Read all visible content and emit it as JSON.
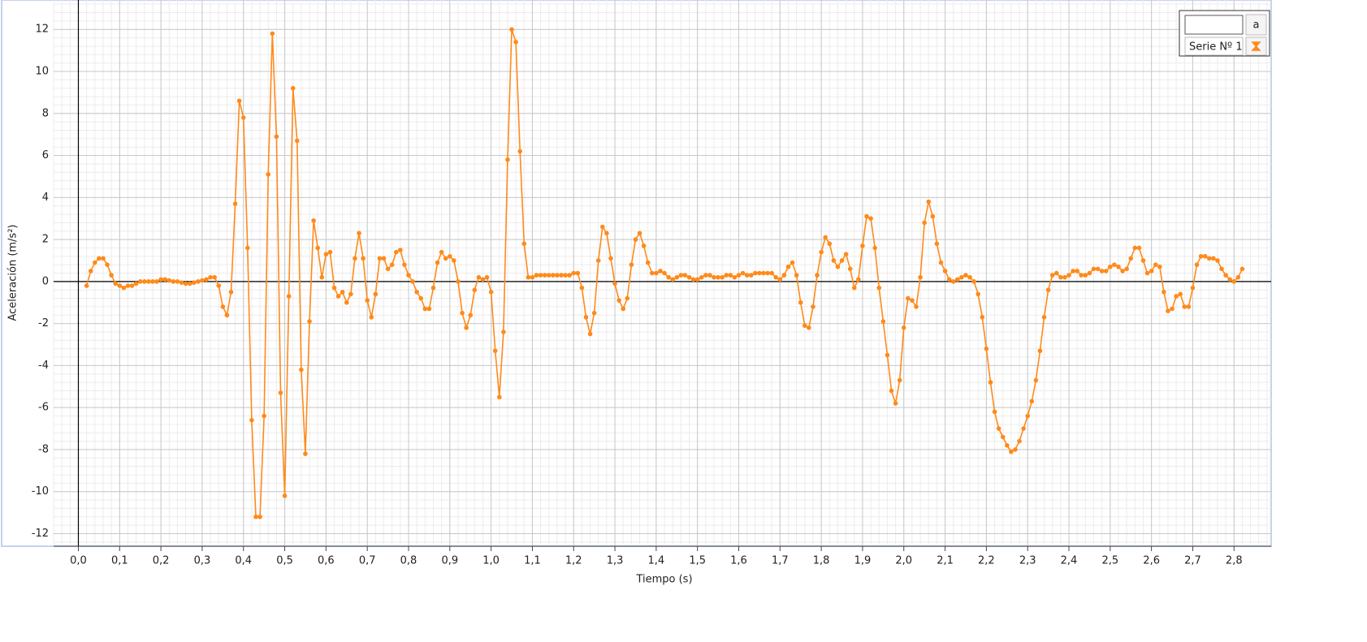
{
  "chart_data": {
    "type": "line",
    "x_label": "Tiempo (s)",
    "y_label": "Aceleración (m/s²)",
    "legend_button": "a",
    "x": [
      0.02,
      0.03,
      0.04,
      0.05,
      0.06,
      0.07,
      0.08,
      0.09,
      0.1,
      0.11,
      0.12,
      0.13,
      0.14,
      0.15,
      0.16,
      0.17,
      0.18,
      0.19,
      0.2,
      0.21,
      0.22,
      0.23,
      0.24,
      0.25,
      0.26,
      0.27,
      0.28,
      0.29,
      0.3,
      0.31,
      0.32,
      0.33,
      0.34,
      0.35,
      0.36,
      0.37,
      0.38,
      0.39,
      0.4,
      0.41,
      0.42,
      0.43,
      0.44,
      0.45,
      0.46,
      0.47,
      0.48,
      0.49,
      0.5,
      0.51,
      0.52,
      0.53,
      0.54,
      0.55,
      0.56,
      0.57,
      0.58,
      0.59,
      0.6,
      0.61,
      0.62,
      0.63,
      0.64,
      0.65,
      0.66,
      0.67,
      0.68,
      0.69,
      0.7,
      0.71,
      0.72,
      0.73,
      0.74,
      0.75,
      0.76,
      0.77,
      0.78,
      0.79,
      0.8,
      0.81,
      0.82,
      0.83,
      0.84,
      0.85,
      0.86,
      0.87,
      0.88,
      0.89,
      0.9,
      0.91,
      0.92,
      0.93,
      0.94,
      0.95,
      0.96,
      0.97,
      0.98,
      0.99,
      1.0,
      1.01,
      1.02,
      1.03,
      1.04,
      1.05,
      1.06,
      1.07,
      1.08,
      1.09,
      1.1,
      1.11,
      1.12,
      1.13,
      1.14,
      1.15,
      1.16,
      1.17,
      1.18,
      1.19,
      1.2,
      1.21,
      1.22,
      1.23,
      1.24,
      1.25,
      1.26,
      1.27,
      1.28,
      1.29,
      1.3,
      1.31,
      1.32,
      1.33,
      1.34,
      1.35,
      1.36,
      1.37,
      1.38,
      1.39,
      1.4,
      1.41,
      1.42,
      1.43,
      1.44,
      1.45,
      1.46,
      1.47,
      1.48,
      1.49,
      1.5,
      1.51,
      1.52,
      1.53,
      1.54,
      1.55,
      1.56,
      1.57,
      1.58,
      1.59,
      1.6,
      1.61,
      1.62,
      1.63,
      1.64,
      1.65,
      1.66,
      1.67,
      1.68,
      1.69,
      1.7,
      1.71,
      1.72,
      1.73,
      1.74,
      1.75,
      1.76,
      1.77,
      1.78,
      1.79,
      1.8,
      1.81,
      1.82,
      1.83,
      1.84,
      1.85,
      1.86,
      1.87,
      1.88,
      1.89,
      1.9,
      1.91,
      1.92,
      1.93,
      1.94,
      1.95,
      1.96,
      1.97,
      1.98,
      1.99,
      2.0,
      2.01,
      2.02,
      2.03,
      2.04,
      2.05,
      2.06,
      2.07,
      2.08,
      2.09,
      2.1,
      2.11,
      2.12,
      2.13,
      2.14,
      2.15,
      2.16,
      2.17,
      2.18,
      2.19,
      2.2,
      2.21,
      2.22,
      2.23,
      2.24,
      2.25,
      2.26,
      2.27,
      2.28,
      2.29,
      2.3,
      2.31,
      2.32,
      2.33,
      2.34,
      2.35,
      2.36,
      2.37,
      2.38,
      2.39,
      2.4,
      2.41,
      2.42,
      2.43,
      2.44,
      2.45,
      2.46,
      2.47,
      2.48,
      2.49,
      2.5,
      2.51,
      2.52,
      2.53,
      2.54,
      2.55,
      2.56,
      2.57,
      2.58,
      2.59,
      2.6,
      2.61,
      2.62,
      2.63,
      2.64,
      2.65,
      2.66,
      2.67,
      2.68,
      2.69,
      2.7,
      2.71,
      2.72,
      2.73,
      2.74,
      2.75,
      2.76,
      2.77,
      2.78,
      2.79,
      2.8,
      2.81,
      2.82
    ],
    "series": [
      {
        "name": "Serie Nº 1",
        "color": "#ff8a1a",
        "values": [
          -0.2,
          0.5,
          0.9,
          1.1,
          1.1,
          0.8,
          0.3,
          -0.1,
          -0.2,
          -0.3,
          -0.2,
          -0.2,
          -0.1,
          0,
          0,
          0,
          0,
          0,
          0.1,
          0.1,
          0.05,
          0,
          0,
          -0.05,
          -0.1,
          -0.1,
          -0.05,
          0,
          0.05,
          0.1,
          0.2,
          0.2,
          -0.2,
          -1.2,
          -1.6,
          -0.5,
          3.7,
          8.6,
          7.8,
          1.6,
          -6.6,
          -11.2,
          -11.2,
          -6.4,
          5.1,
          11.8,
          6.9,
          -5.3,
          -10.2,
          -0.7,
          9.2,
          6.7,
          -4.2,
          -8.2,
          -1.9,
          2.9,
          1.6,
          0.2,
          1.3,
          1.4,
          -0.3,
          -0.7,
          -0.5,
          -1,
          -0.6,
          1.1,
          2.3,
          1.1,
          -0.9,
          -1.7,
          -0.6,
          1.1,
          1.1,
          0.6,
          0.8,
          1.4,
          1.5,
          0.8,
          0.3,
          0,
          -0.5,
          -0.8,
          -1.3,
          -1.3,
          -0.3,
          0.9,
          1.4,
          1.1,
          1.2,
          1,
          0,
          -1.5,
          -2.2,
          -1.6,
          -0.4,
          0.2,
          0.1,
          0.2,
          -0.5,
          -3.3,
          -5.5,
          -2.4,
          5.8,
          12,
          11.4,
          6.2,
          1.8,
          0.2,
          0.2,
          0.3,
          0.3,
          0.3,
          0.3,
          0.3,
          0.3,
          0.3,
          0.3,
          0.3,
          0.4,
          0.4,
          -0.3,
          -1.7,
          -2.5,
          -1.5,
          1,
          2.6,
          2.3,
          1.1,
          -0.1,
          -0.9,
          -1.3,
          -0.8,
          0.8,
          2,
          2.3,
          1.7,
          0.9,
          0.4,
          0.4,
          0.5,
          0.4,
          0.2,
          0.1,
          0.2,
          0.3,
          0.3,
          0.2,
          0.1,
          0.1,
          0.2,
          0.3,
          0.3,
          0.2,
          0.2,
          0.2,
          0.3,
          0.3,
          0.2,
          0.3,
          0.4,
          0.3,
          0.3,
          0.4,
          0.4,
          0.4,
          0.4,
          0.4,
          0.2,
          0.1,
          0.3,
          0.7,
          0.9,
          0.3,
          -1,
          -2.1,
          -2.2,
          -1.2,
          0.3,
          1.4,
          2.1,
          1.8,
          1,
          0.7,
          1,
          1.3,
          0.6,
          -0.3,
          0.1,
          1.7,
          3.1,
          3,
          1.6,
          -0.3,
          -1.9,
          -3.5,
          -5.2,
          -5.8,
          -4.7,
          -2.2,
          -0.8,
          -0.9,
          -1.2,
          0.2,
          2.8,
          3.8,
          3.1,
          1.8,
          0.9,
          0.5,
          0.1,
          0,
          0.1,
          0.2,
          0.3,
          0.2,
          0,
          -0.6,
          -1.7,
          -3.2,
          -4.8,
          -6.2,
          -7,
          -7.4,
          -7.8,
          -8.1,
          -8,
          -7.6,
          -7,
          -6.4,
          -5.7,
          -4.7,
          -3.3,
          -1.7,
          -0.4,
          0.3,
          0.4,
          0.2,
          0.2,
          0.3,
          0.5,
          0.5,
          0.3,
          0.3,
          0.4,
          0.6,
          0.6,
          0.5,
          0.5,
          0.7,
          0.8,
          0.7,
          0.5,
          0.6,
          1.1,
          1.6,
          1.6,
          1,
          0.4,
          0.5,
          0.8,
          0.7,
          -0.5,
          -1.4,
          -1.3,
          -0.7,
          -0.6,
          -1.2,
          -1.2,
          -0.3,
          0.8,
          1.2,
          1.2,
          1.1,
          1.1,
          1,
          0.6,
          0.3,
          0.1,
          0,
          0.2,
          0.6
        ]
      }
    ],
    "xlim": [
      -0.06,
      2.89
    ],
    "ylim": [
      -12.6,
      13.4
    ],
    "xticks": [
      {
        "value": 0,
        "label": "0,0"
      },
      {
        "value": 0.1,
        "label": "0,1"
      },
      {
        "value": 0.2,
        "label": "0,2"
      },
      {
        "value": 0.3,
        "label": "0,3"
      },
      {
        "value": 0.4,
        "label": "0,4"
      },
      {
        "value": 0.5,
        "label": "0,5"
      },
      {
        "value": 0.6,
        "label": "0,6"
      },
      {
        "value": 0.7,
        "label": "0,7"
      },
      {
        "value": 0.8,
        "label": "0,8"
      },
      {
        "value": 0.9,
        "label": "0,9"
      },
      {
        "value": 1.0,
        "label": "1,0"
      },
      {
        "value": 1.1,
        "label": "1,1"
      },
      {
        "value": 1.2,
        "label": "1,2"
      },
      {
        "value": 1.3,
        "label": "1,3"
      },
      {
        "value": 1.4,
        "label": "1,4"
      },
      {
        "value": 1.5,
        "label": "1,5"
      },
      {
        "value": 1.6,
        "label": "1,6"
      },
      {
        "value": 1.7,
        "label": "1,7"
      },
      {
        "value": 1.8,
        "label": "1,8"
      },
      {
        "value": 1.9,
        "label": "1,9"
      },
      {
        "value": 2.0,
        "label": "2,0"
      },
      {
        "value": 2.1,
        "label": "2,1"
      },
      {
        "value": 2.2,
        "label": "2,2"
      },
      {
        "value": 2.3,
        "label": "2,3"
      },
      {
        "value": 2.4,
        "label": "2,4"
      },
      {
        "value": 2.5,
        "label": "2,5"
      },
      {
        "value": 2.6,
        "label": "2,6"
      },
      {
        "value": 2.7,
        "label": "2,7"
      },
      {
        "value": 2.8,
        "label": "2,8"
      }
    ],
    "yticks": [
      -12,
      -10,
      -8,
      -6,
      -4,
      -2,
      0,
      2,
      4,
      6,
      8,
      10,
      12
    ],
    "grid": true,
    "legend": "upper right"
  }
}
